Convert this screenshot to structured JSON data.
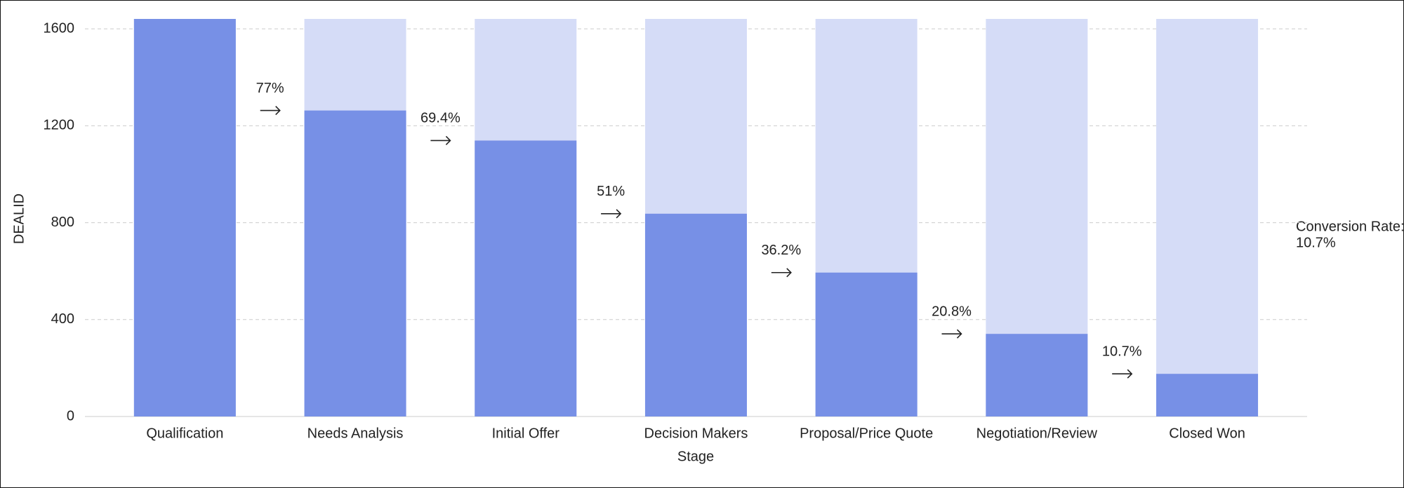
{
  "chart_data": {
    "type": "funnel-bar",
    "categories": [
      "Qualification",
      "Needs Analysis",
      "Initial Offer",
      "Decision Makers",
      "Proposal/Price Quote",
      "Negotiation/Review",
      "Closed Won"
    ],
    "values": [
      1641,
      1263,
      1139,
      837,
      594,
      341,
      176
    ],
    "color": "#7790e6",
    "background_color": "#d5dcf7",
    "rates": [
      77,
      69.4,
      51,
      36.2,
      20.8,
      10.7
    ],
    "rate_labels": [
      "77%",
      "69.4%",
      "51%",
      "36.2%",
      "20.8%",
      "10.7%"
    ],
    "annotation": "Conversion Rate:",
    "xlabel": "Stage",
    "ylabel": "DEALID",
    "ylim": [
      0,
      1641
    ],
    "yticks": [
      0,
      400,
      800,
      1200,
      1600
    ],
    "grid": true
  }
}
